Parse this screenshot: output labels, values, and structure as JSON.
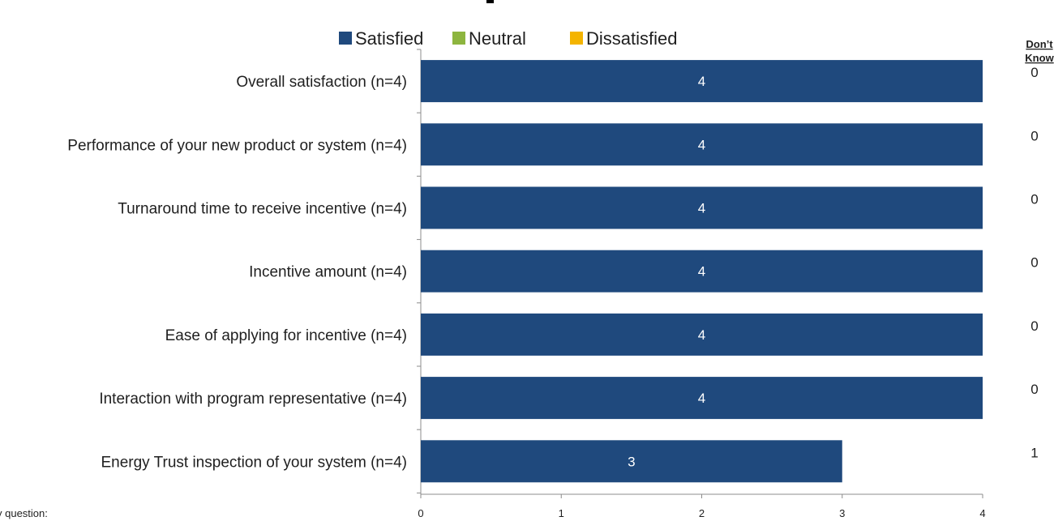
{
  "chart_data": {
    "type": "bar",
    "orientation": "horizontal",
    "stacked": true,
    "categories": [
      "Overall satisfaction (n=4)",
      "Performance of your new product or system (n=4)",
      "Turnaround time to receive incentive (n=4)",
      "Incentive amount (n=4)",
      "Ease of applying for incentive (n=4)",
      "Interaction with program representative (n=4)",
      "Energy Trust inspection of your system (n=4)"
    ],
    "series": [
      {
        "name": "Satisfied",
        "color": "#1f497d",
        "values": [
          4,
          4,
          4,
          4,
          4,
          4,
          3
        ]
      },
      {
        "name": "Neutral",
        "color": "#8db53f",
        "values": [
          0,
          0,
          0,
          0,
          0,
          0,
          0
        ]
      },
      {
        "name": "Dissatisfied",
        "color": "#f4b400",
        "values": [
          0,
          0,
          0,
          0,
          0,
          0,
          0
        ]
      }
    ],
    "data_labels": [
      "4",
      "4",
      "4",
      "4",
      "4",
      "4",
      "3"
    ],
    "xlim": [
      0,
      4
    ],
    "x_ticks": [
      "0",
      "1",
      "2",
      "3",
      "4"
    ],
    "grid": false,
    "legend_position": "top",
    "side_column": {
      "header_line1": "Don’t",
      "header_line2": "Know",
      "values": [
        "0",
        "0",
        "0",
        "0",
        "0",
        "0",
        "1"
      ]
    }
  },
  "footnote": "y question:"
}
